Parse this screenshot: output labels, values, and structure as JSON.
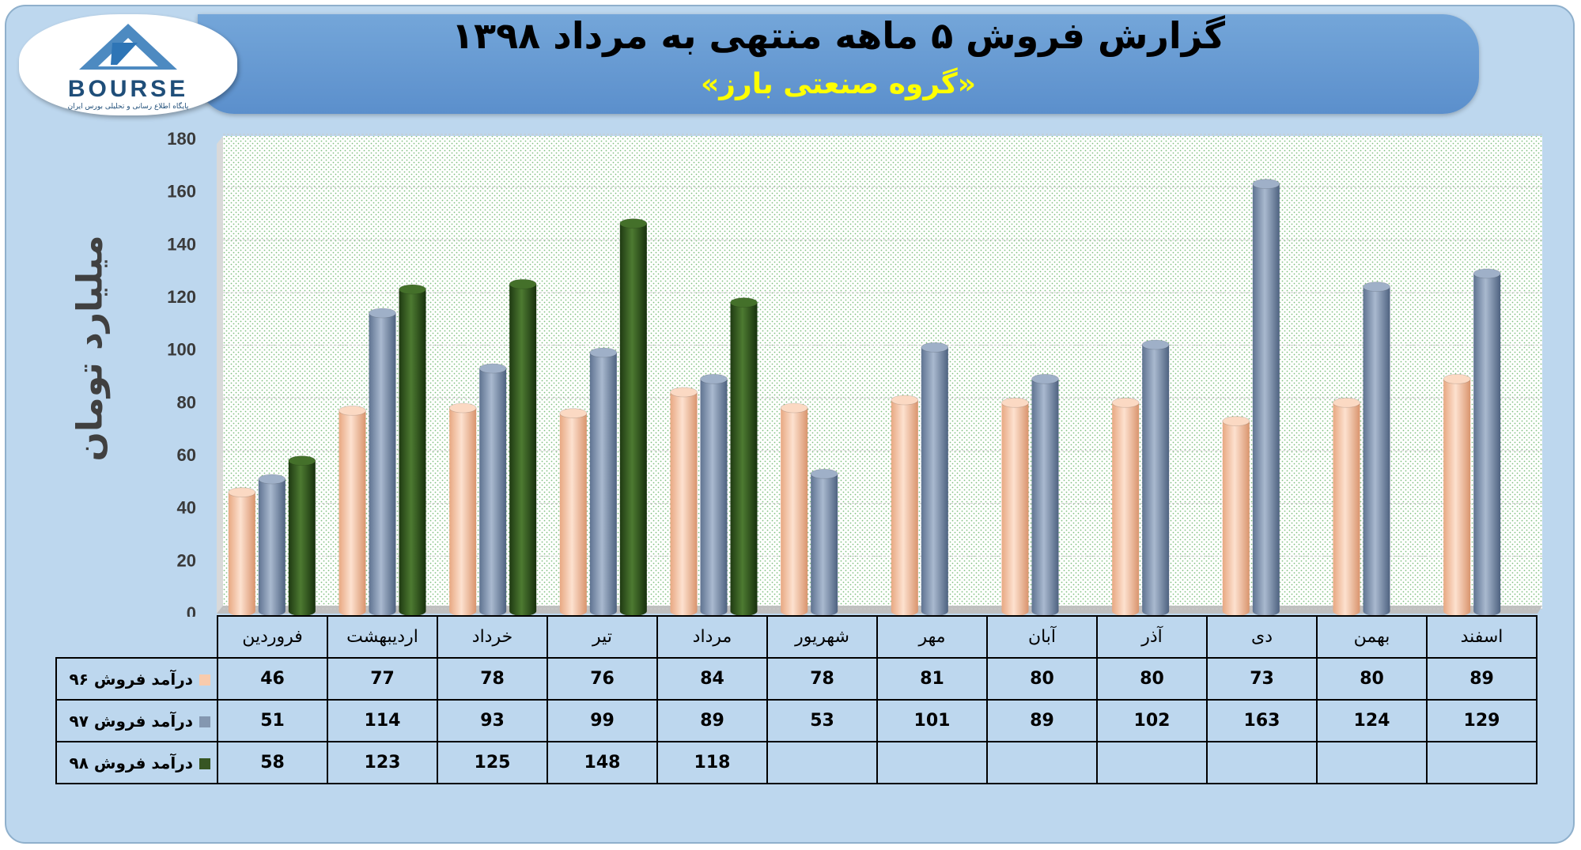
{
  "chart_data": {
    "type": "bar",
    "title": "گزارش فروش ۵ ماهه منتهی به مرداد ۱۳۹۸",
    "subtitle": "«گروه صنعتی بارز»",
    "ylabel": "میلیارد تومان",
    "xlabel": "",
    "ylim": [
      0,
      180
    ],
    "yticks": [
      0,
      20,
      40,
      60,
      80,
      100,
      120,
      140,
      160,
      180
    ],
    "grid": true,
    "legend": "table",
    "categories": [
      "فروردین",
      "اردیبهشت",
      "خرداد",
      "تیر",
      "مرداد",
      "شهریور",
      "مهر",
      "آبان",
      "آذر",
      "دی",
      "بهمن",
      "اسفند"
    ],
    "series": [
      {
        "name": "درآمد فروش ۹۶",
        "color": "#f8cbad",
        "values": [
          46,
          77,
          78,
          76,
          84,
          78,
          81,
          80,
          80,
          73,
          80,
          89
        ]
      },
      {
        "name": "درآمد فروش ۹۷",
        "color": "#8497b0",
        "values": [
          51,
          114,
          93,
          99,
          89,
          53,
          101,
          89,
          102,
          163,
          124,
          129
        ]
      },
      {
        "name": "درآمد فروش ۹۸",
        "color": "#375623",
        "values": [
          58,
          123,
          125,
          148,
          118,
          null,
          null,
          null,
          null,
          null,
          null,
          null
        ]
      }
    ]
  },
  "logo": {
    "text": "BOURSE",
    "tagline": "پایگاه اطلاع رسانی و تحلیلی بورس ایران"
  }
}
